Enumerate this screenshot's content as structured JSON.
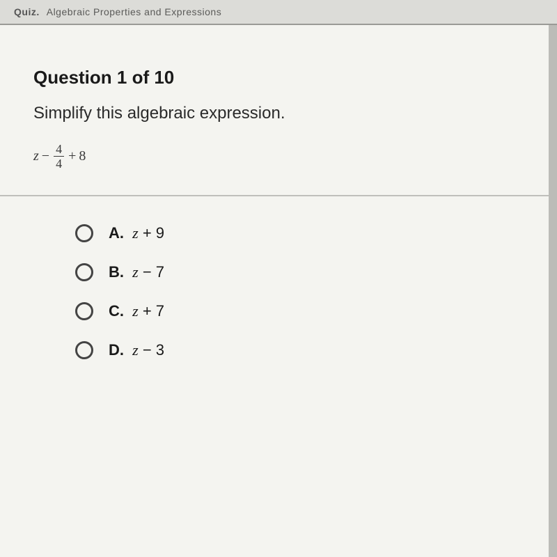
{
  "header": {
    "quiz_prefix": "Quiz.",
    "quiz_title": "Algebraic Properties and Expressions"
  },
  "question": {
    "title": "Question 1 of 10",
    "prompt": "Simplify this algebraic expression.",
    "expression": {
      "lead_var": "z",
      "op1": "−",
      "fraction": {
        "num": "4",
        "den": "4"
      },
      "op2": "+",
      "tail": "8"
    }
  },
  "options": [
    {
      "letter": "A.",
      "var": "z",
      "op": "+",
      "num": "9"
    },
    {
      "letter": "B.",
      "var": "z",
      "op": "−",
      "num": "7"
    },
    {
      "letter": "C.",
      "var": "z",
      "op": "+",
      "num": "7"
    },
    {
      "letter": "D.",
      "var": "z",
      "op": "−",
      "num": "3"
    }
  ],
  "style": {
    "page_bg": "#f4f4f0",
    "outer_bg": "#d4d4d0",
    "divider_color": "#bfbfbb",
    "radio_border": "#444444",
    "text_color": "#1a1a1a",
    "title_fontsize": 26,
    "prompt_fontsize": 24,
    "option_fontsize": 22
  }
}
